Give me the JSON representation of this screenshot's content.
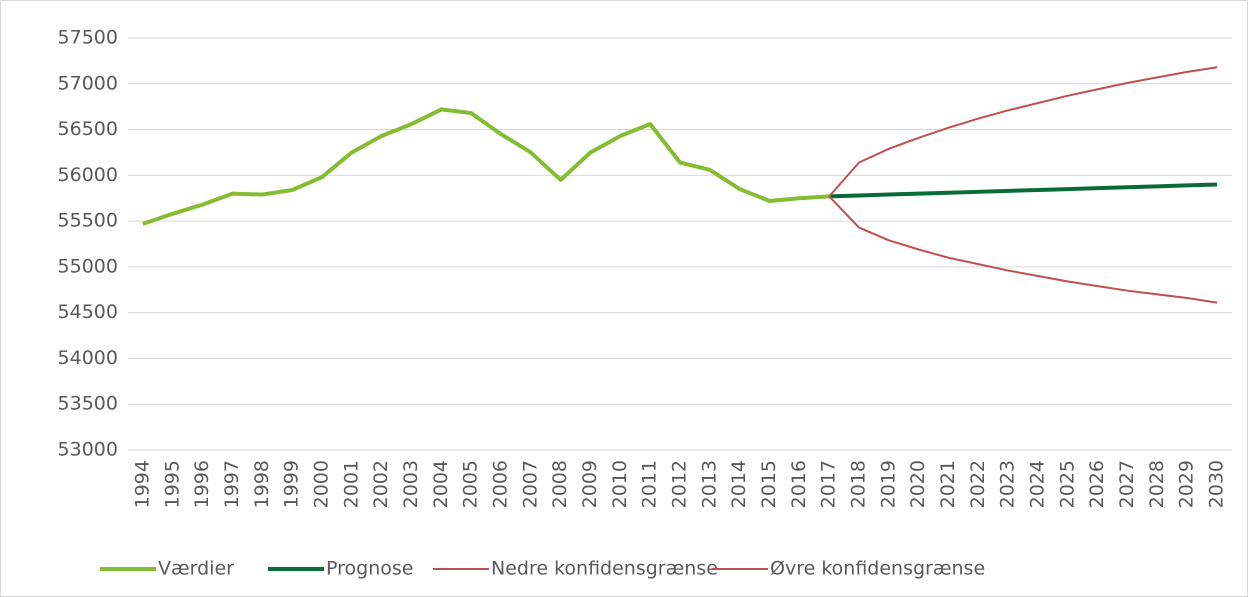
{
  "chart_data": {
    "type": "line",
    "categories": [
      "1994",
      "1995",
      "1996",
      "1997",
      "1998",
      "1999",
      "2000",
      "2001",
      "2002",
      "2003",
      "2004",
      "2005",
      "2006",
      "2007",
      "2008",
      "2009",
      "2010",
      "2011",
      "2012",
      "2013",
      "2014",
      "2015",
      "2016",
      "2017",
      "2018",
      "2019",
      "2020",
      "2021",
      "2022",
      "2023",
      "2024",
      "2025",
      "2026",
      "2027",
      "2028",
      "2029",
      "2030"
    ],
    "series": [
      {
        "name": "Værdier",
        "color": "#84bd32",
        "width": 4,
        "values": [
          55470,
          55580,
          55680,
          55800,
          55790,
          55840,
          55980,
          56250,
          56430,
          56560,
          56720,
          56680,
          56450,
          56250,
          55950,
          56250,
          56430,
          56560,
          56140,
          56060,
          55850,
          55720,
          55750,
          55770,
          null,
          null,
          null,
          null,
          null,
          null,
          null,
          null,
          null,
          null,
          null,
          null,
          null
        ]
      },
      {
        "name": "Prognose",
        "color": "#0b6b35",
        "width": 4,
        "values": [
          null,
          null,
          null,
          null,
          null,
          null,
          null,
          null,
          null,
          null,
          null,
          null,
          null,
          null,
          null,
          null,
          null,
          null,
          null,
          null,
          null,
          null,
          null,
          55770,
          55780,
          55790,
          55800,
          55810,
          55820,
          55830,
          55840,
          55850,
          55860,
          55870,
          55880,
          55890,
          55900
        ]
      },
      {
        "name": "Nedre konfidensgrænse",
        "color": "#c0504d",
        "width": 2,
        "values": [
          null,
          null,
          null,
          null,
          null,
          null,
          null,
          null,
          null,
          null,
          null,
          null,
          null,
          null,
          null,
          null,
          null,
          null,
          null,
          null,
          null,
          null,
          null,
          55770,
          55430,
          55290,
          55190,
          55100,
          55030,
          54960,
          54900,
          54840,
          54790,
          54740,
          54700,
          54660,
          54610
        ]
      },
      {
        "name": "Øvre konfidensgrænse",
        "color": "#c0504d",
        "width": 2,
        "values": [
          null,
          null,
          null,
          null,
          null,
          null,
          null,
          null,
          null,
          null,
          null,
          null,
          null,
          null,
          null,
          null,
          null,
          null,
          null,
          null,
          null,
          null,
          null,
          55770,
          56140,
          56290,
          56410,
          56520,
          56620,
          56710,
          56790,
          56870,
          56940,
          57010,
          57070,
          57130,
          57180
        ]
      }
    ],
    "ylim": [
      53000,
      57500
    ],
    "yticks": [
      53000,
      53500,
      54000,
      54500,
      55000,
      55500,
      56000,
      56500,
      57000,
      57500
    ],
    "grid": true,
    "legend": "bottom"
  }
}
